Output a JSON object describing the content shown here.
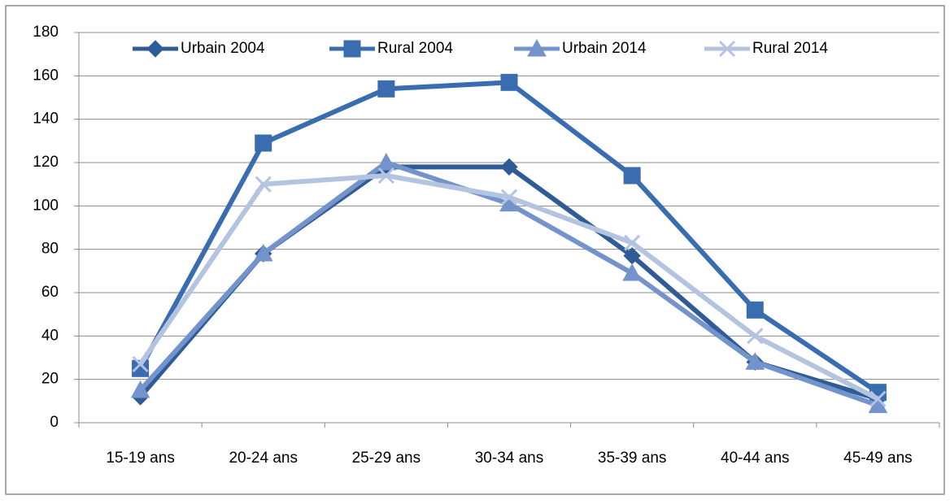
{
  "chart_data": {
    "type": "line",
    "categories": [
      "15-19 ans",
      "20-24 ans",
      "25-29 ans",
      "30-34 ans",
      "35-39 ans",
      "40-44 ans",
      "45-49 ans"
    ],
    "series": [
      {
        "name": "Urbain 2004",
        "color": "#2f5c96",
        "marker": "diamond",
        "values": [
          12,
          78,
          118,
          118,
          77,
          28,
          11
        ]
      },
      {
        "name": "Rural 2004",
        "color": "#3a6cb0",
        "marker": "square",
        "values": [
          25,
          129,
          154,
          157,
          114,
          52,
          14
        ]
      },
      {
        "name": "Urbain 2014",
        "color": "#7393cb",
        "marker": "triangle",
        "values": [
          15,
          78,
          120,
          101,
          69,
          28,
          8
        ]
      },
      {
        "name": "Rural 2014",
        "color": "#b3c3e0",
        "marker": "x",
        "values": [
          27,
          110,
          114,
          104,
          83,
          40,
          11
        ]
      }
    ],
    "ylim": [
      0,
      180
    ],
    "yticks": [
      0,
      20,
      40,
      60,
      80,
      100,
      120,
      140,
      160,
      180
    ],
    "grid": true,
    "legend": "top"
  }
}
